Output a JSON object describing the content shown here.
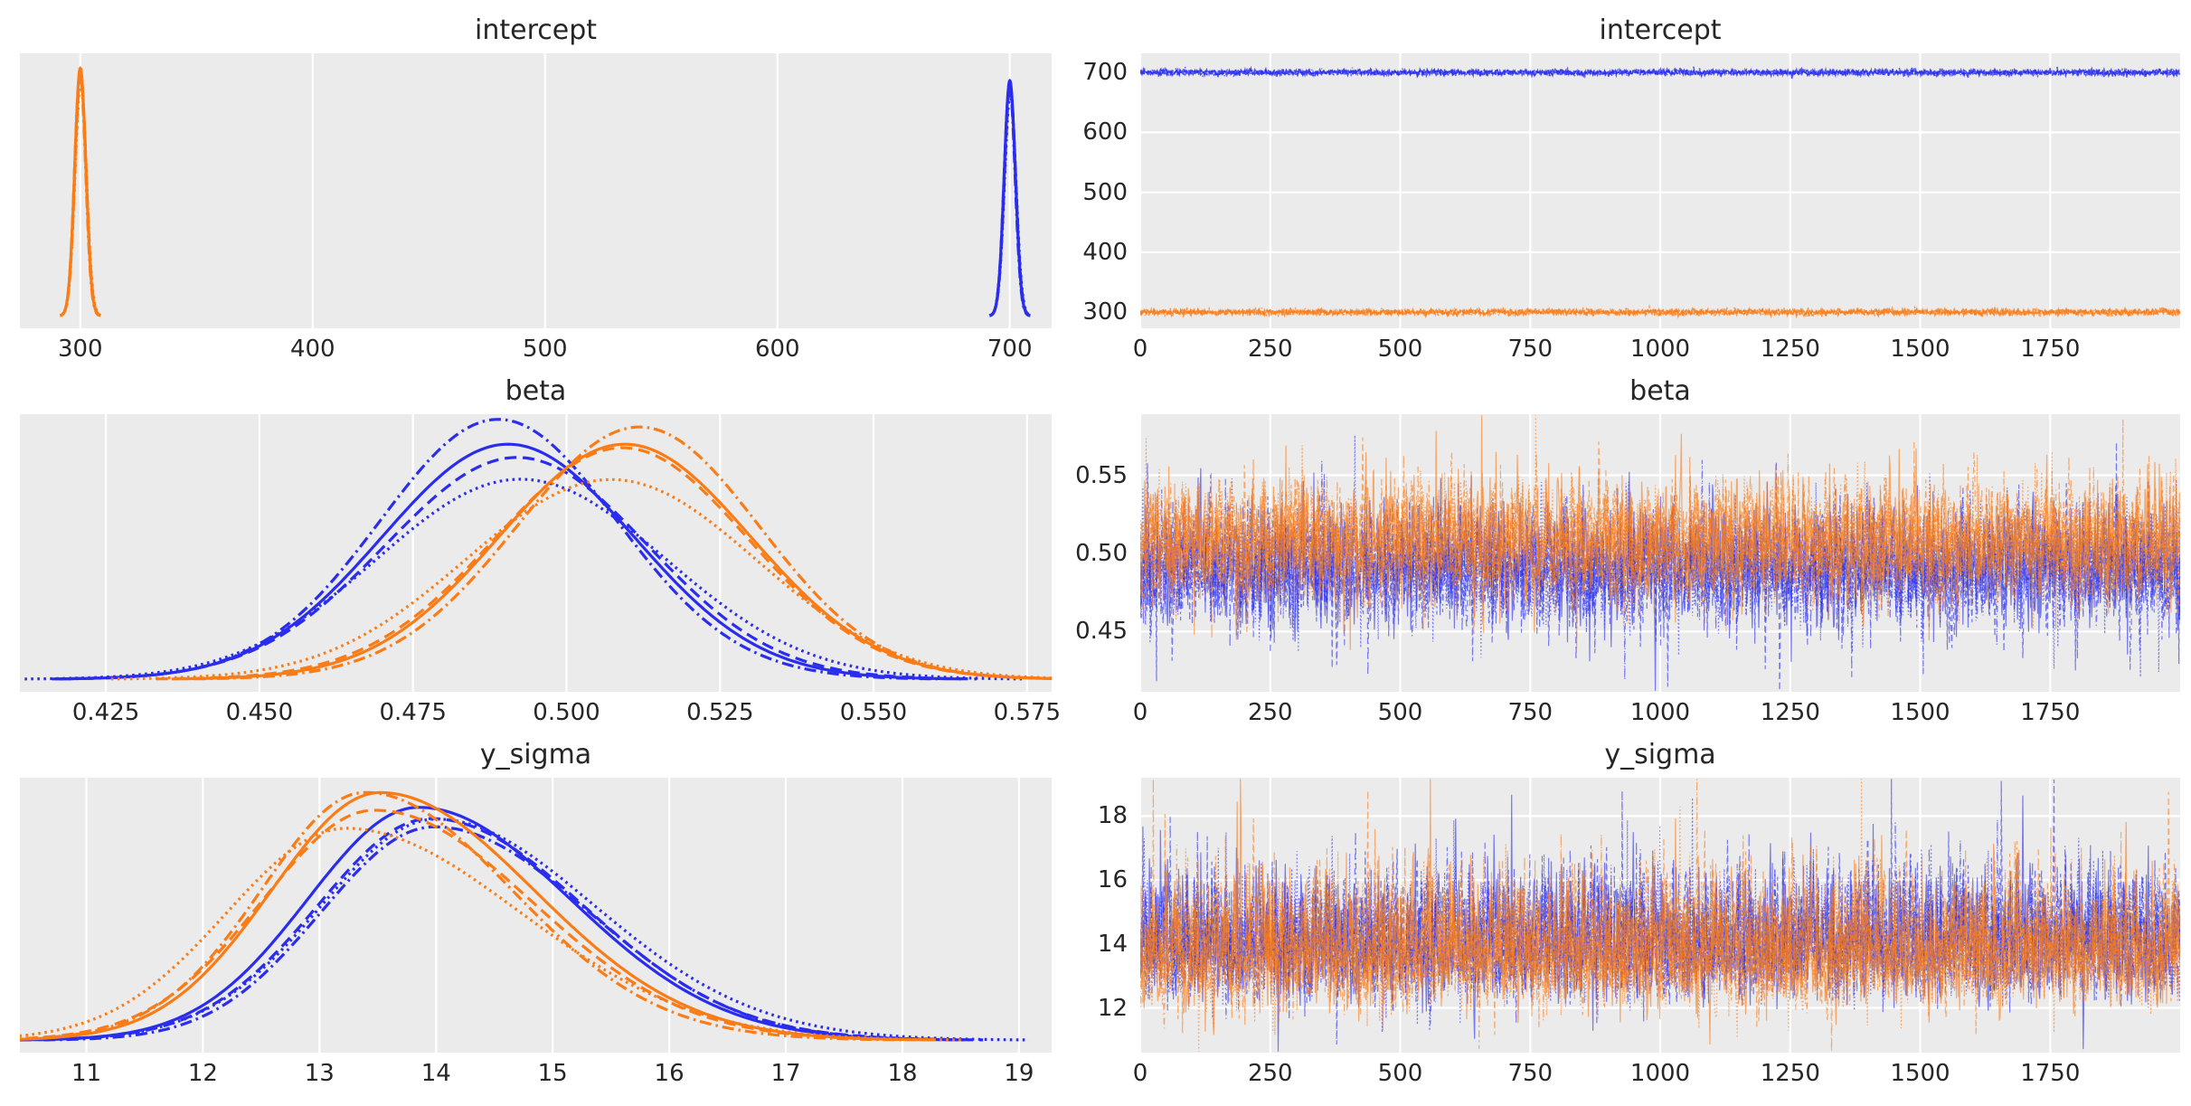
{
  "figure": {
    "bg": "#ffffff",
    "panel_bg": "#ebebeb",
    "grid_color": "#ffffff",
    "text_color": "#262626",
    "colors": {
      "blue": "#2a2eec",
      "orange": "#fa7c17"
    },
    "chain_linestyles": [
      "solid",
      "dashed",
      "dashdot",
      "dotted"
    ],
    "n_chains": 4,
    "n_draws": 2000
  },
  "chart_data": [
    {
      "id": "intercept-posterior",
      "type": "line",
      "kind": "kde",
      "title": "intercept",
      "xlim": [
        274,
        718
      ],
      "xticks": [
        300,
        400,
        500,
        600,
        700
      ],
      "xtick_labels": [
        "300",
        "400",
        "500",
        "600",
        "700"
      ],
      "ylim": [
        -0.05,
        1.06
      ],
      "grid": "vertical",
      "legend": false,
      "chain_wiggle": [
        0,
        0,
        0,
        0
      ],
      "series": [
        {
          "name": "chain-group-blue",
          "color": "#2a2eec",
          "mean": 700,
          "sd_left": 2.4,
          "sd_right": 2.4,
          "peak": 0.95,
          "chain_mods": {
            "peak": [
              1,
              0.97,
              0.98,
              0.94
            ],
            "shift": [
              0,
              0.04,
              -0.04,
              0.08
            ],
            "width": [
              1,
              1.01,
              0.99,
              1.03
            ]
          }
        },
        {
          "name": "chain-group-orange",
          "color": "#fa7c17",
          "mean": 300,
          "sd_left": 2.4,
          "sd_right": 2.4,
          "peak": 1.0,
          "chain_mods": {
            "peak": [
              1,
              0.97,
              0.98,
              0.94
            ],
            "shift": [
              0,
              0.04,
              -0.04,
              0.08
            ],
            "width": [
              1,
              1.01,
              0.99,
              1.03
            ]
          }
        }
      ]
    },
    {
      "id": "intercept-trace",
      "type": "line",
      "kind": "trace",
      "title": "intercept",
      "xlim": [
        0,
        2000
      ],
      "xticks": [
        0,
        250,
        500,
        750,
        1000,
        1250,
        1500,
        1750
      ],
      "xtick_labels": [
        "0",
        "250",
        "500",
        "750",
        "1000",
        "1250",
        "1500",
        "1750"
      ],
      "ylim": [
        273,
        732
      ],
      "yticks": [
        700,
        600,
        500,
        400,
        300
      ],
      "ytick_labels": [
        "700",
        "600",
        "500",
        "400",
        "300"
      ],
      "grid": "both",
      "legend": false,
      "rho": 0.2,
      "spike": 1.6,
      "skew_up": false,
      "line_width": 1.5,
      "line_alpha": 0.75,
      "series": [
        {
          "name": "chain-group-blue",
          "color": "#2a2eec",
          "center": 700,
          "sd": 2.4
        },
        {
          "name": "chain-group-orange",
          "color": "#fa7c17",
          "center": 300,
          "sd": 2.4
        }
      ]
    },
    {
      "id": "beta-posterior",
      "type": "line",
      "kind": "kde",
      "title": "beta",
      "xlim": [
        0.411,
        0.579
      ],
      "xticks": [
        0.425,
        0.45,
        0.475,
        0.5,
        0.525,
        0.55,
        0.575
      ],
      "xtick_labels": [
        "0.425",
        "0.450",
        "0.475",
        "0.500",
        "0.525",
        "0.550",
        "0.575"
      ],
      "ylim": [
        -0.05,
        1.06
      ],
      "grid": "vertical",
      "legend": false,
      "chain_wiggle": [
        0,
        0.03,
        0.04,
        0.05
      ],
      "series": [
        {
          "name": "chain-group-blue",
          "color": "#2a2eec",
          "mean": 0.4905,
          "sd_left": 0.0205,
          "sd_right": 0.0205,
          "peak": 1.0,
          "chain_mods": {
            "peak": [
              0.94,
              0.91,
              1.0,
              0.84
            ],
            "shift": [
              0,
              0.05,
              -0.07,
              0.12
            ],
            "width": [
              1,
              1.02,
              0.97,
              1.1
            ]
          }
        },
        {
          "name": "chain-group-orange",
          "color": "#fa7c17",
          "mean": 0.5095,
          "sd_left": 0.0205,
          "sd_right": 0.0205,
          "peak": 1.0,
          "chain_mods": {
            "peak": [
              0.94,
              0.91,
              1.0,
              0.84
            ],
            "shift": [
              0,
              -0.05,
              0.07,
              -0.12
            ],
            "width": [
              1,
              1.02,
              0.97,
              1.1
            ]
          }
        }
      ]
    },
    {
      "id": "beta-trace",
      "type": "line",
      "kind": "trace",
      "title": "beta",
      "xlim": [
        0,
        2000
      ],
      "xticks": [
        0,
        250,
        500,
        750,
        1000,
        1250,
        1500,
        1750
      ],
      "xtick_labels": [
        "0",
        "250",
        "500",
        "750",
        "1000",
        "1250",
        "1500",
        "1750"
      ],
      "ylim": [
        0.4115,
        0.589
      ],
      "yticks": [
        0.55,
        0.5,
        0.45
      ],
      "ytick_labels": [
        "0.55",
        "0.50",
        "0.45"
      ],
      "grid": "both",
      "legend": false,
      "rho": 0.2,
      "spike": 1.9,
      "skew_up": false,
      "line_width": 1.2,
      "line_alpha": 0.6,
      "series": [
        {
          "name": "chain-group-blue",
          "color": "#2a2eec",
          "center": 0.4905,
          "sd": 0.019
        },
        {
          "name": "chain-group-orange",
          "color": "#fa7c17",
          "center": 0.5095,
          "sd": 0.019
        }
      ]
    },
    {
      "id": "y-sigma-posterior",
      "type": "line",
      "kind": "kde",
      "title": "y_sigma",
      "xlim": [
        10.43,
        19.28
      ],
      "xticks": [
        11,
        12,
        13,
        14,
        15,
        16,
        17,
        18,
        19
      ],
      "xtick_labels": [
        "11",
        "12",
        "13",
        "14",
        "15",
        "16",
        "17",
        "18",
        "19"
      ],
      "ylim": [
        -0.05,
        1.06
      ],
      "grid": "vertical",
      "legend": false,
      "chain_wiggle": [
        0,
        0.03,
        0.045,
        0.05
      ],
      "series": [
        {
          "name": "chain-group-blue",
          "color": "#2a2eec",
          "mean": 13.85,
          "sd_left": 0.95,
          "sd_right": 1.3,
          "peak": 0.95,
          "chain_mods": {
            "peak": [
              0.99,
              0.93,
              0.95,
              0.9
            ],
            "shift": [
              0,
              0.06,
              0.12,
              0.16
            ],
            "width": [
              1,
              1.02,
              0.98,
              1.08
            ]
          }
        },
        {
          "name": "chain-group-orange",
          "color": "#fa7c17",
          "mean": 13.52,
          "sd_left": 0.93,
          "sd_right": 1.32,
          "peak": 1.0,
          "chain_mods": {
            "peak": [
              1,
              0.93,
              0.96,
              0.88
            ],
            "shift": [
              0,
              -0.08,
              -0.13,
              -0.2
            ],
            "width": [
              1,
              1.02,
              0.98,
              1.1
            ]
          }
        }
      ]
    },
    {
      "id": "y-sigma-trace",
      "type": "line",
      "kind": "trace",
      "title": "y_sigma",
      "xlim": [
        0,
        2000
      ],
      "xticks": [
        0,
        250,
        500,
        750,
        1000,
        1250,
        1500,
        1750
      ],
      "xtick_labels": [
        "0",
        "250",
        "500",
        "750",
        "1000",
        "1250",
        "1500",
        "1750"
      ],
      "ylim": [
        10.6,
        19.2
      ],
      "yticks": [
        18,
        16,
        14,
        12
      ],
      "ytick_labels": [
        "18",
        "16",
        "14",
        "12"
      ],
      "grid": "both",
      "legend": false,
      "rho": 0.2,
      "spike": 1.7,
      "skew_up": true,
      "line_width": 1.2,
      "line_alpha": 0.6,
      "series": [
        {
          "name": "chain-group-blue",
          "color": "#2a2eec",
          "center": 13.85,
          "sd": 0.95
        },
        {
          "name": "chain-group-orange",
          "color": "#fa7c17",
          "center": 13.6,
          "sd": 0.95
        }
      ]
    }
  ]
}
